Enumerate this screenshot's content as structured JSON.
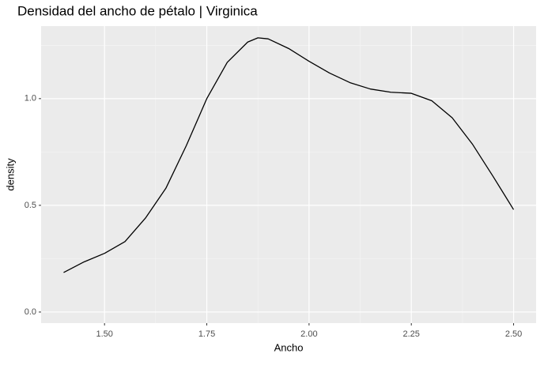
{
  "chart_data": {
    "type": "line",
    "title": "Densidad del ancho de pétalo | Virginica",
    "x_label": "Ancho",
    "y_label": "density",
    "x": [
      1.4,
      1.45,
      1.5,
      1.55,
      1.6,
      1.65,
      1.7,
      1.75,
      1.8,
      1.85,
      1.875,
      1.9,
      1.95,
      2.0,
      2.05,
      2.1,
      2.15,
      2.2,
      2.25,
      2.3,
      2.35,
      2.4,
      2.45,
      2.5
    ],
    "series": [
      {
        "name": "density",
        "color": "#000000",
        "values": [
          0.185,
          0.235,
          0.275,
          0.33,
          0.44,
          0.58,
          0.78,
          1.0,
          1.17,
          1.265,
          1.285,
          1.28,
          1.235,
          1.175,
          1.12,
          1.075,
          1.045,
          1.03,
          1.025,
          0.99,
          0.91,
          0.785,
          0.635,
          0.48
        ]
      }
    ],
    "xlim": [
      1.345,
      2.555
    ],
    "ylim": [
      -0.052,
      1.34
    ],
    "xticks": [
      {
        "value": 1.5,
        "label": "1.50"
      },
      1.75,
      {
        "value": 2.0,
        "label": "2.00"
      },
      2.25,
      {
        "value": 2.5,
        "label": "2.50"
      }
    ],
    "yticks": [
      {
        "value": 0,
        "label": "0.0"
      },
      0.5,
      {
        "value": 1,
        "label": "1.0"
      }
    ],
    "x_minor_grid": [
      1.625,
      1.875,
      2.125,
      2.375
    ],
    "y_minor_grid": [
      0.25,
      0.75,
      1.25
    ],
    "grid": true
  }
}
